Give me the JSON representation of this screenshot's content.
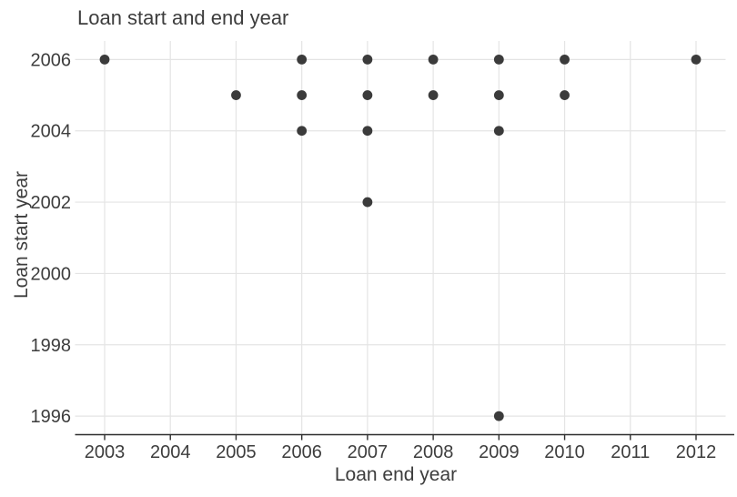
{
  "chart_data": {
    "type": "scatter",
    "title": "Loan start and end year",
    "xlabel": "Loan end year",
    "ylabel": "Loan start year",
    "x_ticks": [
      2003,
      2004,
      2005,
      2006,
      2007,
      2008,
      2009,
      2010,
      2011,
      2012
    ],
    "y_ticks": [
      1996,
      1998,
      2000,
      2002,
      2004,
      2006
    ],
    "xlim": [
      2002.55,
      2012.45
    ],
    "ylim": [
      1995.48,
      2006.52
    ],
    "grid": true,
    "legend": "none",
    "points": [
      {
        "x": 2003,
        "y": 2006
      },
      {
        "x": 2005,
        "y": 2005
      },
      {
        "x": 2006,
        "y": 2004
      },
      {
        "x": 2006,
        "y": 2005
      },
      {
        "x": 2006,
        "y": 2006
      },
      {
        "x": 2007,
        "y": 2002
      },
      {
        "x": 2007,
        "y": 2004
      },
      {
        "x": 2007,
        "y": 2005
      },
      {
        "x": 2007,
        "y": 2006
      },
      {
        "x": 2008,
        "y": 2005
      },
      {
        "x": 2008,
        "y": 2006
      },
      {
        "x": 2009,
        "y": 1996
      },
      {
        "x": 2009,
        "y": 2004
      },
      {
        "x": 2009,
        "y": 2005
      },
      {
        "x": 2009,
        "y": 2006
      },
      {
        "x": 2010,
        "y": 2005
      },
      {
        "x": 2010,
        "y": 2006
      },
      {
        "x": 2012,
        "y": 2006
      }
    ],
    "colors": {
      "point": "#3b3b3b",
      "grid": "#e4e4e4",
      "axis_line": "#2f2f2f",
      "text": "#3d3d3d",
      "background": "#ffffff"
    }
  }
}
